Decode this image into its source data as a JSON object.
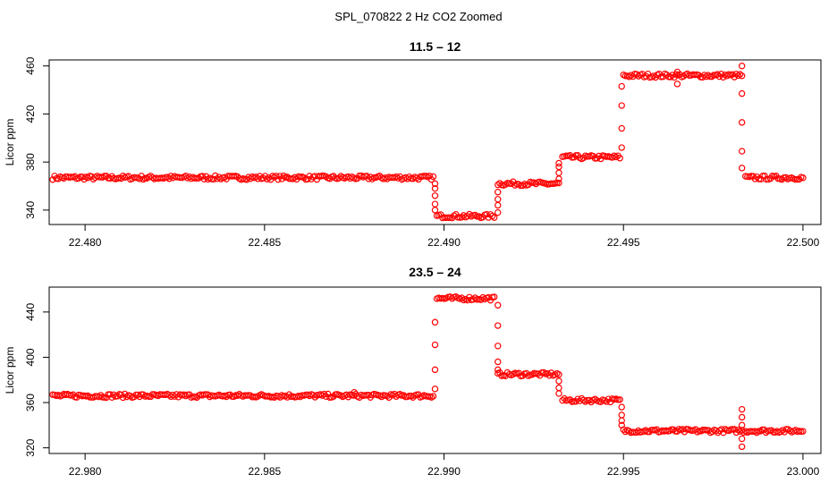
{
  "figure": {
    "title": "SPL_070822  2 Hz CO2 Zoomed"
  },
  "chart_data": [
    {
      "type": "scatter",
      "title": "11.5 – 12",
      "xlabel": "",
      "ylabel": "Licor ppm",
      "xlim": [
        22.479,
        22.5005
      ],
      "ylim": [
        328,
        465
      ],
      "xticks": [
        22.48,
        22.485,
        22.49,
        22.495,
        22.5
      ],
      "xtick_labels": [
        "22.480",
        "22.485",
        "22.490",
        "22.495",
        "22.500"
      ],
      "yticks": [
        340,
        380,
        420,
        460
      ],
      "ytick_labels": [
        "340",
        "380",
        "420",
        "460"
      ],
      "color": "#ff0000",
      "segments": [
        {
          "x": [
            22.4791,
            22.4897
          ],
          "y": 367
        },
        {
          "x": [
            22.4898,
            22.4914
          ],
          "y": 335
        },
        {
          "x": [
            22.4915,
            22.4932
          ],
          "y": 362
        },
        {
          "x": [
            22.4933,
            22.4949
          ],
          "y": 384
        },
        {
          "x": [
            22.495,
            22.4983
          ],
          "y": 452
        },
        {
          "x": [
            22.4984,
            22.5
          ],
          "y": 367
        }
      ],
      "transitions": [
        {
          "x": 22.48975,
          "y": [
            340,
            345,
            352,
            358,
            362
          ]
        },
        {
          "x": 22.4915,
          "y": [
            338,
            344,
            349,
            355
          ]
        },
        {
          "x": 22.4932,
          "y": [
            366,
            371,
            376,
            379
          ]
        },
        {
          "x": 22.49495,
          "y": [
            392,
            408,
            427,
            443
          ]
        },
        {
          "x": 22.4983,
          "y": [
            460,
            437,
            413,
            389,
            375
          ]
        }
      ],
      "outliers": [
        {
          "x": 22.4965,
          "y": 455
        },
        {
          "x": 22.4965,
          "y": 445
        }
      ]
    },
    {
      "type": "scatter",
      "title": "23.5 – 24",
      "xlabel": "",
      "ylabel": "Licor ppm",
      "xlim": [
        22.979,
        23.0005
      ],
      "ylim": [
        315,
        462
      ],
      "xticks": [
        22.98,
        22.985,
        22.99,
        22.995,
        23.0
      ],
      "xtick_labels": [
        "22.980",
        "22.985",
        "22.990",
        "22.995",
        "23.000"
      ],
      "yticks": [
        320,
        360,
        400,
        440
      ],
      "ytick_labels": [
        "320",
        "360",
        "400",
        "440"
      ],
      "color": "#ff0000",
      "segments": [
        {
          "x": [
            22.9791,
            22.9897
          ],
          "y": 366
        },
        {
          "x": [
            22.9898,
            22.9914
          ],
          "y": 452
        },
        {
          "x": [
            22.9915,
            22.9932
          ],
          "y": 385
        },
        {
          "x": [
            22.9933,
            22.9949
          ],
          "y": 362
        },
        {
          "x": [
            22.995,
            23.0
          ],
          "y": 335
        }
      ],
      "transitions": [
        {
          "x": 22.98975,
          "y": [
            372,
            389,
            411,
            431
          ]
        },
        {
          "x": 22.9915,
          "y": [
            446,
            428,
            410,
            396,
            389
          ]
        },
        {
          "x": 22.9932,
          "y": [
            379,
            373,
            368
          ]
        },
        {
          "x": 22.99495,
          "y": [
            356,
            349,
            344,
            340
          ]
        },
        {
          "x": 22.9983,
          "y": [
            354,
            347,
            340,
            328,
            321
          ]
        }
      ],
      "outliers": [
        {
          "x": 22.9875,
          "y": 369
        }
      ]
    }
  ]
}
